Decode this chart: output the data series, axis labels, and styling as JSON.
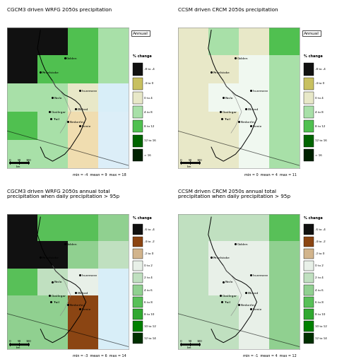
{
  "panels": [
    {
      "title": "CGCM3 driven WRFG 2050s precipitation",
      "subtitle": "Annual",
      "stats": "min = -4  mean = 9  max = 18",
      "type": "annual",
      "model": "CGCM3_WRFG"
    },
    {
      "title": "CCSM driven CRCM 2050s precipitation",
      "subtitle": "Annual",
      "stats": "min = 0  mean = 4  max = 11",
      "type": "annual",
      "model": "CCSM_CRCM"
    },
    {
      "title": "CGCM3 driven WRFG 2050s annual total\nprecipitation when daily precipitation > 95p",
      "subtitle": "",
      "stats": "min = -3  mean = 6  max = 14",
      "type": "extreme",
      "model": "CGCM3_WRFG"
    },
    {
      "title": "CCSM driven CRCM 2050s annual total\nprecipitation when daily precipitation > 95p",
      "subtitle": "",
      "stats": "min = -1  mean = 4  max = 12",
      "type": "extreme",
      "model": "CCSM_CRCM"
    }
  ],
  "legend_annual": {
    "title": "% change",
    "labels": [
      "-8 to -4",
      "-4 to 0",
      "0 to 4",
      "4 to 8",
      "8 to 12",
      "12 to 16",
      "> 16"
    ],
    "colors": [
      "#111111",
      "#c8c060",
      "#e8e8c8",
      "#a8e0a8",
      "#50c050",
      "#006400",
      "#002200"
    ]
  },
  "legend_extreme": {
    "title": "% change",
    "labels": [
      "-6 to -4",
      "-4 to -2",
      "-2 to 0",
      "0 to 2",
      "2 to 4",
      "4 to 6",
      "6 to 8",
      "8 to 10",
      "10 to 12",
      "12 to 14"
    ],
    "colors": [
      "#111111",
      "#8B4513",
      "#d2b48c",
      "#e8f0e8",
      "#c0e0c0",
      "#90d090",
      "#58c058",
      "#30a830",
      "#008000",
      "#003000"
    ]
  },
  "bg_color": "#ffffff"
}
